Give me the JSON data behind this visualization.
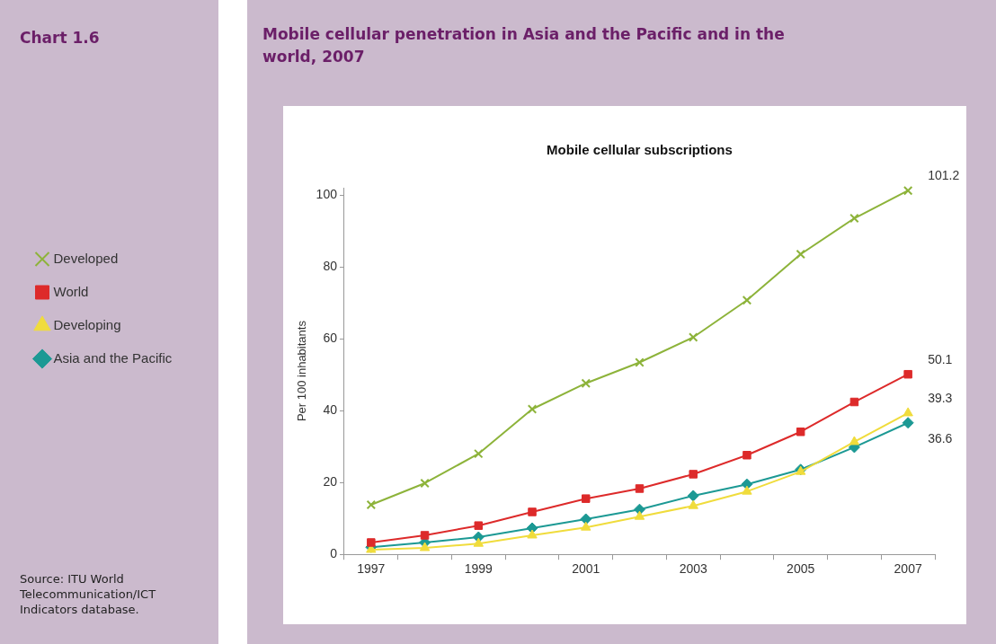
{
  "chart_data": {
    "type": "line",
    "title": "Mobile cellular penetration in Asia and the Pacific and in the world, 2007",
    "subtitle": "Mobile cellular subscriptions",
    "ylabel": "Per 100 inhabitants",
    "annotations": [
      "Chart 1.6",
      "Source: ITU World Telecommunication/ICT Indicators database."
    ],
    "categories": [
      "1997",
      null,
      "1999",
      null,
      "2001",
      null,
      "2003",
      null,
      "2005",
      null,
      "2007"
    ],
    "ylim": [
      0,
      102
    ],
    "yticks": [
      0,
      20,
      40,
      60,
      80,
      100
    ],
    "grid": false,
    "legend": "left",
    "series": [
      {
        "name": "Developed",
        "color": "#8db33a",
        "marker": "cross",
        "values": [
          13.8,
          19.8,
          28,
          40.4,
          47.6,
          53.4,
          60.4,
          70.7,
          83.5,
          93.5,
          101.2
        ],
        "value_labels": [
          null,
          null,
          null,
          null,
          null,
          null,
          null,
          null,
          null,
          null,
          "101.2"
        ]
      },
      {
        "name": "World",
        "color": "#dd2a2a",
        "marker": "square",
        "values": [
          3.3,
          5.3,
          8,
          11.8,
          15.5,
          18.3,
          22.3,
          27.6,
          34.1,
          42.4,
          50.1
        ],
        "value_labels": [
          null,
          null,
          null,
          null,
          null,
          null,
          null,
          null,
          null,
          null,
          "50.1"
        ]
      },
      {
        "name": "Developing",
        "color": "#f0dc3c",
        "marker": "triangle",
        "values": [
          1.3,
          1.8,
          3,
          5.3,
          7.5,
          10.5,
          13.5,
          17.5,
          23,
          31.3,
          39.3
        ],
        "value_labels": [
          null,
          null,
          null,
          null,
          null,
          null,
          null,
          null,
          null,
          null,
          "39.3"
        ]
      },
      {
        "name": "Asia and the Pacific",
        "color": "#1c9994",
        "marker": "diamond",
        "values": [
          2,
          3.3,
          4.8,
          7.3,
          9.8,
          12.5,
          16.3,
          19.5,
          23.6,
          29.8,
          36.6
        ],
        "value_labels": [
          null,
          null,
          null,
          null,
          null,
          null,
          null,
          null,
          null,
          null,
          "36.6"
        ]
      }
    ]
  }
}
